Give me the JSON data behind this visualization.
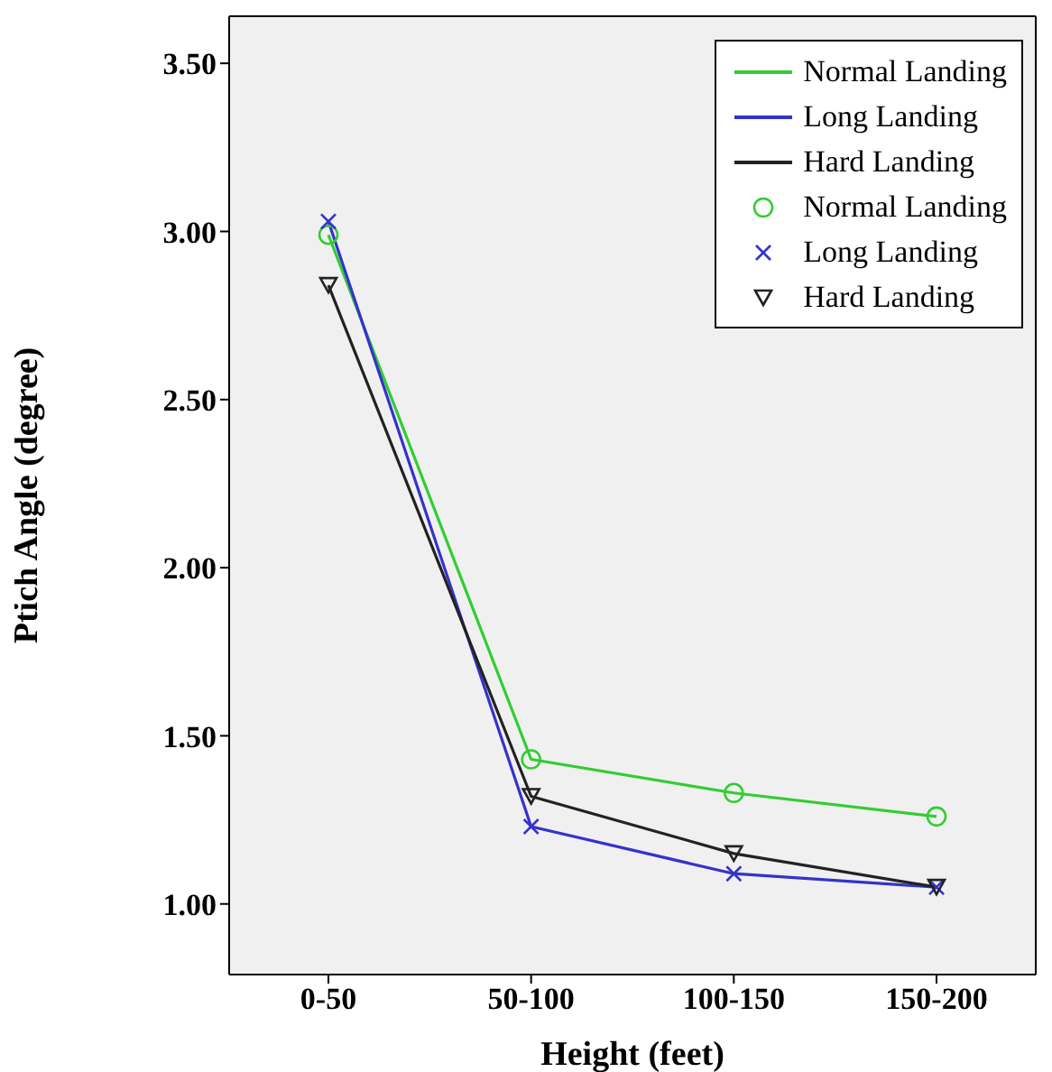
{
  "chart_data": {
    "type": "line",
    "xlabel": "Height (feet)",
    "ylabel": "Ptich Angle (degree)",
    "categories": [
      "0-50",
      "50-100",
      "100-150",
      "150-200"
    ],
    "ylim": [
      0.79,
      3.64
    ],
    "yticks": [
      {
        "value": 1,
        "label": "1.00"
      },
      {
        "value": 1.5,
        "label": "1.50"
      },
      {
        "value": 2,
        "label": "2.00"
      },
      {
        "value": 2.5,
        "label": "2.50"
      },
      {
        "value": 3,
        "label": "3.00"
      },
      {
        "value": 3.5,
        "label": "3.50"
      }
    ],
    "legend": "top right",
    "series": [
      {
        "name": "Normal Landing",
        "marker": "circle",
        "color": "#33cc33",
        "values": [
          2.99,
          1.43,
          1.33,
          1.26
        ]
      },
      {
        "name": "Long Landing",
        "marker": "cross",
        "color": "#3333cc",
        "values": [
          3.03,
          1.23,
          1.09,
          1.05
        ]
      },
      {
        "name": "Hard Landing",
        "marker": "triangle",
        "color": "#222222",
        "values": [
          2.84,
          1.32,
          1.15,
          1.05
        ]
      }
    ]
  }
}
